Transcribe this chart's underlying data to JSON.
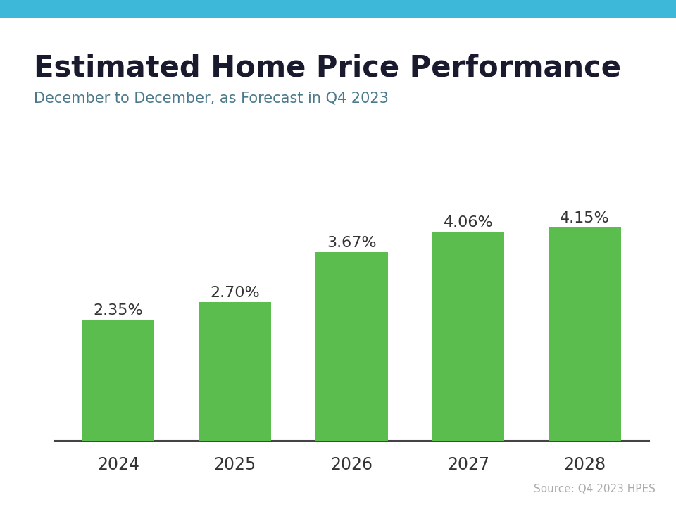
{
  "title": "Estimated Home Price Performance",
  "subtitle": "December to December, as Forecast in Q4 2023",
  "source": "Source: Q4 2023 HPES",
  "categories": [
    "2024",
    "2025",
    "2026",
    "2027",
    "2028"
  ],
  "values": [
    2.35,
    2.7,
    3.67,
    4.06,
    4.15
  ],
  "labels": [
    "2.35%",
    "2.70%",
    "3.67%",
    "4.06%",
    "4.15%"
  ],
  "bar_color": "#5BBD4E",
  "title_color": "#1a1a2e",
  "subtitle_color": "#4a7a8a",
  "source_color": "#aaaaaa",
  "tick_color": "#333333",
  "axis_line_color": "#444444",
  "top_bar_color": "#3eb8d8",
  "background_color": "#ffffff",
  "title_fontsize": 30,
  "subtitle_fontsize": 15,
  "label_fontsize": 16,
  "tick_fontsize": 17,
  "source_fontsize": 11
}
